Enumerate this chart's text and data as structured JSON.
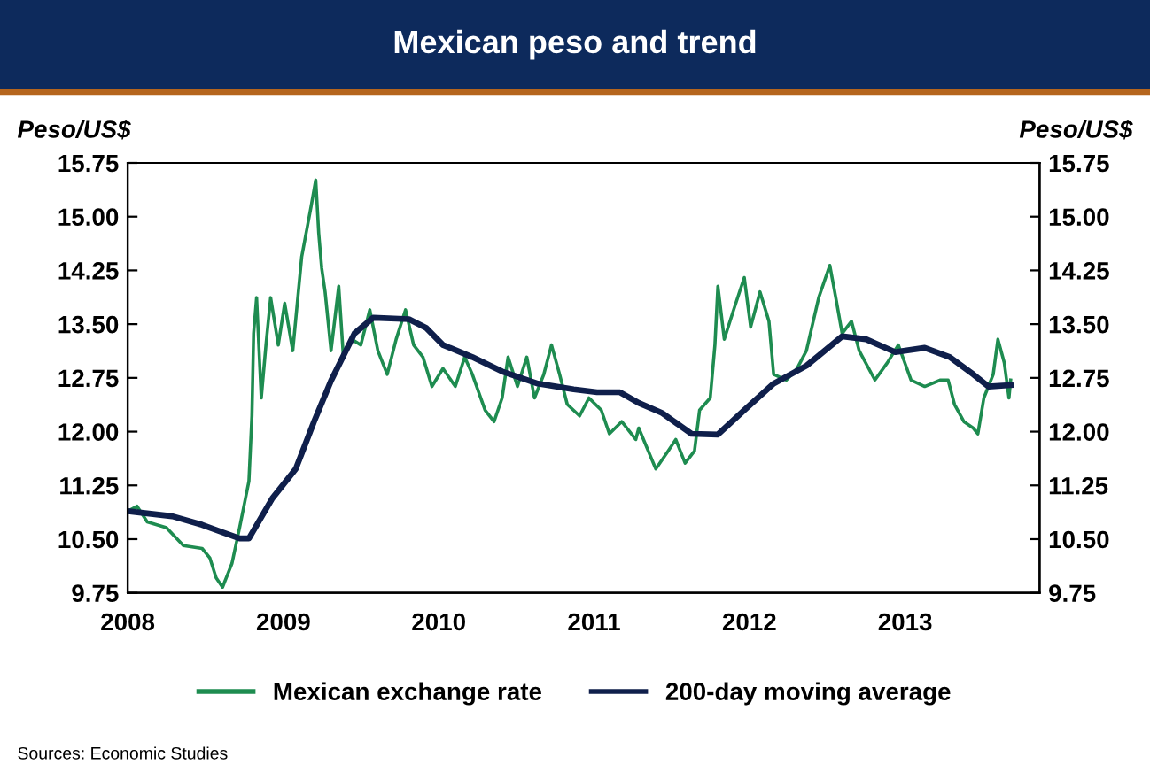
{
  "chart_data": {
    "type": "line",
    "title": "Mexican peso and trend",
    "ylabel": "Peso/US$",
    "y2label": "Peso/US$",
    "annotations": [
      "Sources: Economic Studies"
    ],
    "series": [
      {
        "name": "Mexican exchange rate",
        "color": "#1e8c50",
        "x": [
          "2008-01-01",
          "2008-01-23",
          "2008-02-16",
          "2008-04-01",
          "2008-05-11",
          "2008-06-24",
          "2008-07-12",
          "2008-07-27",
          "2008-08-11",
          "2008-09-02",
          "2008-09-20",
          "2008-10-12",
          "2008-10-19",
          "2008-10-23",
          "2008-10-30",
          "2008-11-10",
          "2008-11-21",
          "2008-12-02",
          "2008-12-20",
          "2009-01-04",
          "2009-01-23",
          "2009-02-13",
          "2009-03-07",
          "2009-03-18",
          "2009-03-25",
          "2009-04-01",
          "2009-04-09",
          "2009-04-23",
          "2009-05-11",
          "2009-05-22",
          "2009-06-10",
          "2009-07-02",
          "2009-07-23",
          "2009-08-11",
          "2009-09-02",
          "2009-09-23",
          "2009-10-15",
          "2009-11-03",
          "2009-11-25",
          "2009-12-16",
          "2010-01-11",
          "2010-02-09",
          "2010-03-03",
          "2010-03-21",
          "2010-04-20",
          "2010-05-11",
          "2010-05-30",
          "2010-06-13",
          "2010-07-05",
          "2010-07-27",
          "2010-08-14",
          "2010-09-05",
          "2010-09-23",
          "2010-10-12",
          "2010-10-30",
          "2010-11-28",
          "2010-12-20",
          "2011-01-18",
          "2011-02-06",
          "2011-03-07",
          "2011-04-09",
          "2011-04-16",
          "2011-05-26",
          "2011-06-24",
          "2011-07-12",
          "2011-08-03",
          "2011-08-25",
          "2011-09-06",
          "2011-10-01",
          "2011-10-12",
          "2011-10-19",
          "2011-11-03",
          "2011-11-25",
          "2011-12-20",
          "2012-01-04",
          "2012-01-26",
          "2012-02-16",
          "2012-02-27",
          "2012-03-28",
          "2012-04-22",
          "2012-05-14",
          "2012-06-12",
          "2012-07-08",
          "2012-07-22",
          "2012-08-06",
          "2012-08-28",
          "2012-09-15",
          "2012-10-22",
          "2012-11-20",
          "2012-12-16",
          "2013-01-15",
          "2013-02-16",
          "2013-03-25",
          "2013-04-12",
          "2013-04-27",
          "2013-05-19",
          "2013-06-10",
          "2013-06-21",
          "2013-07-05",
          "2013-07-27",
          "2013-08-07",
          "2013-08-22",
          "2013-09-02",
          "2013-09-06"
        ],
        "values": [
          10.89,
          10.96,
          10.74,
          10.66,
          10.41,
          10.37,
          10.24,
          9.96,
          9.83,
          10.16,
          10.66,
          11.31,
          12.22,
          13.37,
          13.87,
          12.47,
          13.21,
          13.87,
          13.21,
          13.79,
          13.13,
          14.44,
          15.14,
          15.51,
          14.77,
          14.28,
          13.95,
          13.13,
          14.03,
          13.04,
          13.29,
          13.21,
          13.7,
          13.13,
          12.8,
          13.29,
          13.7,
          13.21,
          13.04,
          12.63,
          12.88,
          12.63,
          13.04,
          12.8,
          12.3,
          12.14,
          12.47,
          13.04,
          12.63,
          13.04,
          12.47,
          12.8,
          13.21,
          12.8,
          12.38,
          12.22,
          12.47,
          12.3,
          11.97,
          12.14,
          11.89,
          12.05,
          11.48,
          11.73,
          11.89,
          11.56,
          11.73,
          12.3,
          12.47,
          13.21,
          14.03,
          13.29,
          13.7,
          14.15,
          13.46,
          13.95,
          13.54,
          12.8,
          12.72,
          12.88,
          13.13,
          13.87,
          14.32,
          13.87,
          13.37,
          13.54,
          13.13,
          12.72,
          12.96,
          13.21,
          12.72,
          12.63,
          12.72,
          12.72,
          12.38,
          12.14,
          12.05,
          11.97,
          12.47,
          12.8,
          13.29,
          12.96,
          12.47,
          12.72
        ]
      },
      {
        "name": "200-day moving average",
        "color": "#0f1f4b",
        "x": [
          "2008-01-01",
          "2008-04-15",
          "2008-06-24",
          "2008-09-20",
          "2008-10-12",
          "2008-12-06",
          "2009-01-30",
          "2009-03-14",
          "2009-04-23",
          "2009-06-17",
          "2009-07-31",
          "2009-10-23",
          "2009-12-02",
          "2010-01-11",
          "2010-03-21",
          "2010-05-30",
          "2010-08-22",
          "2010-11-14",
          "2011-01-08",
          "2011-03-03",
          "2011-04-16",
          "2011-06-10",
          "2011-08-18",
          "2011-10-19",
          "2011-12-20",
          "2012-02-27",
          "2012-05-14",
          "2012-08-06",
          "2012-10-01",
          "2012-12-09",
          "2013-02-16",
          "2013-04-16",
          "2013-06-10",
          "2013-07-16",
          "2013-09-06"
        ],
        "values": [
          10.89,
          10.82,
          10.7,
          10.51,
          10.51,
          11.07,
          11.48,
          12.14,
          12.71,
          13.37,
          13.59,
          13.57,
          13.45,
          13.21,
          13.04,
          12.84,
          12.67,
          12.59,
          12.55,
          12.55,
          12.4,
          12.26,
          11.97,
          11.96,
          12.3,
          12.67,
          12.92,
          13.33,
          13.29,
          13.11,
          13.17,
          13.04,
          12.8,
          12.63,
          12.65
        ]
      }
    ],
    "xlim": [
      "2008-01-01",
      "2013-11-13"
    ],
    "xticks": [
      {
        "value": "2008-01-01",
        "label": "2008"
      },
      {
        "value": "2009-01-01",
        "label": "2009"
      },
      {
        "value": "2010-01-01",
        "label": "2010"
      },
      {
        "value": "2011-01-01",
        "label": "2011"
      },
      {
        "value": "2012-01-01",
        "label": "2012"
      },
      {
        "value": "2013-01-01",
        "label": "2013"
      }
    ],
    "ylim": [
      9.75,
      15.75
    ],
    "yticks": [
      {
        "value": 9.75,
        "label": "9.75"
      },
      {
        "value": 10.5,
        "label": "10.50"
      },
      {
        "value": 11.25,
        "label": "11.25"
      },
      {
        "value": 12.0,
        "label": "12.00"
      },
      {
        "value": 12.75,
        "label": "12.75"
      },
      {
        "value": 13.5,
        "label": "13.50"
      },
      {
        "value": 14.25,
        "label": "14.25"
      },
      {
        "value": 15.0,
        "label": "15.00"
      },
      {
        "value": 15.75,
        "label": "15.75"
      }
    ],
    "y2lim": [
      9.75,
      15.75
    ],
    "y2ticks": [
      {
        "value": 9.75,
        "label": "9.75"
      },
      {
        "value": 10.5,
        "label": "10.50"
      },
      {
        "value": 11.25,
        "label": "11.25"
      },
      {
        "value": 12.0,
        "label": "12.00"
      },
      {
        "value": 12.75,
        "label": "12.75"
      },
      {
        "value": 13.5,
        "label": "13.50"
      },
      {
        "value": 14.25,
        "label": "14.25"
      },
      {
        "value": 15.0,
        "label": "15.00"
      },
      {
        "value": 15.75,
        "label": "15.75"
      }
    ],
    "legend": "bottom",
    "grid": false
  }
}
